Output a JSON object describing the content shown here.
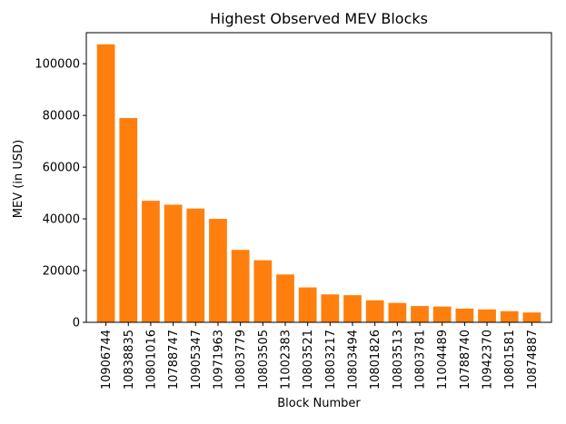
{
  "chart_data": {
    "type": "bar",
    "title": "Highest Observed MEV Blocks",
    "xlabel": "Block Number",
    "ylabel": "MEV (in USD)",
    "categories": [
      "10906744",
      "10838835",
      "10801016",
      "10788747",
      "10905347",
      "10971963",
      "10803779",
      "10803505",
      "11002383",
      "10803521",
      "10803217",
      "10803494",
      "10801826",
      "10803513",
      "10803781",
      "11004489",
      "10788740",
      "10942370",
      "10801581",
      "10874887"
    ],
    "values": [
      107500,
      79000,
      47000,
      45500,
      44000,
      40000,
      28000,
      24000,
      18500,
      13500,
      10800,
      10500,
      8500,
      7500,
      6300,
      6100,
      5300,
      5000,
      4300,
      3800
    ],
    "ylim": [
      0,
      112000
    ],
    "yticks": [
      0,
      20000,
      40000,
      60000,
      80000,
      100000
    ],
    "bar_color": "#ff7f0e",
    "grid": false,
    "legend": "none"
  }
}
